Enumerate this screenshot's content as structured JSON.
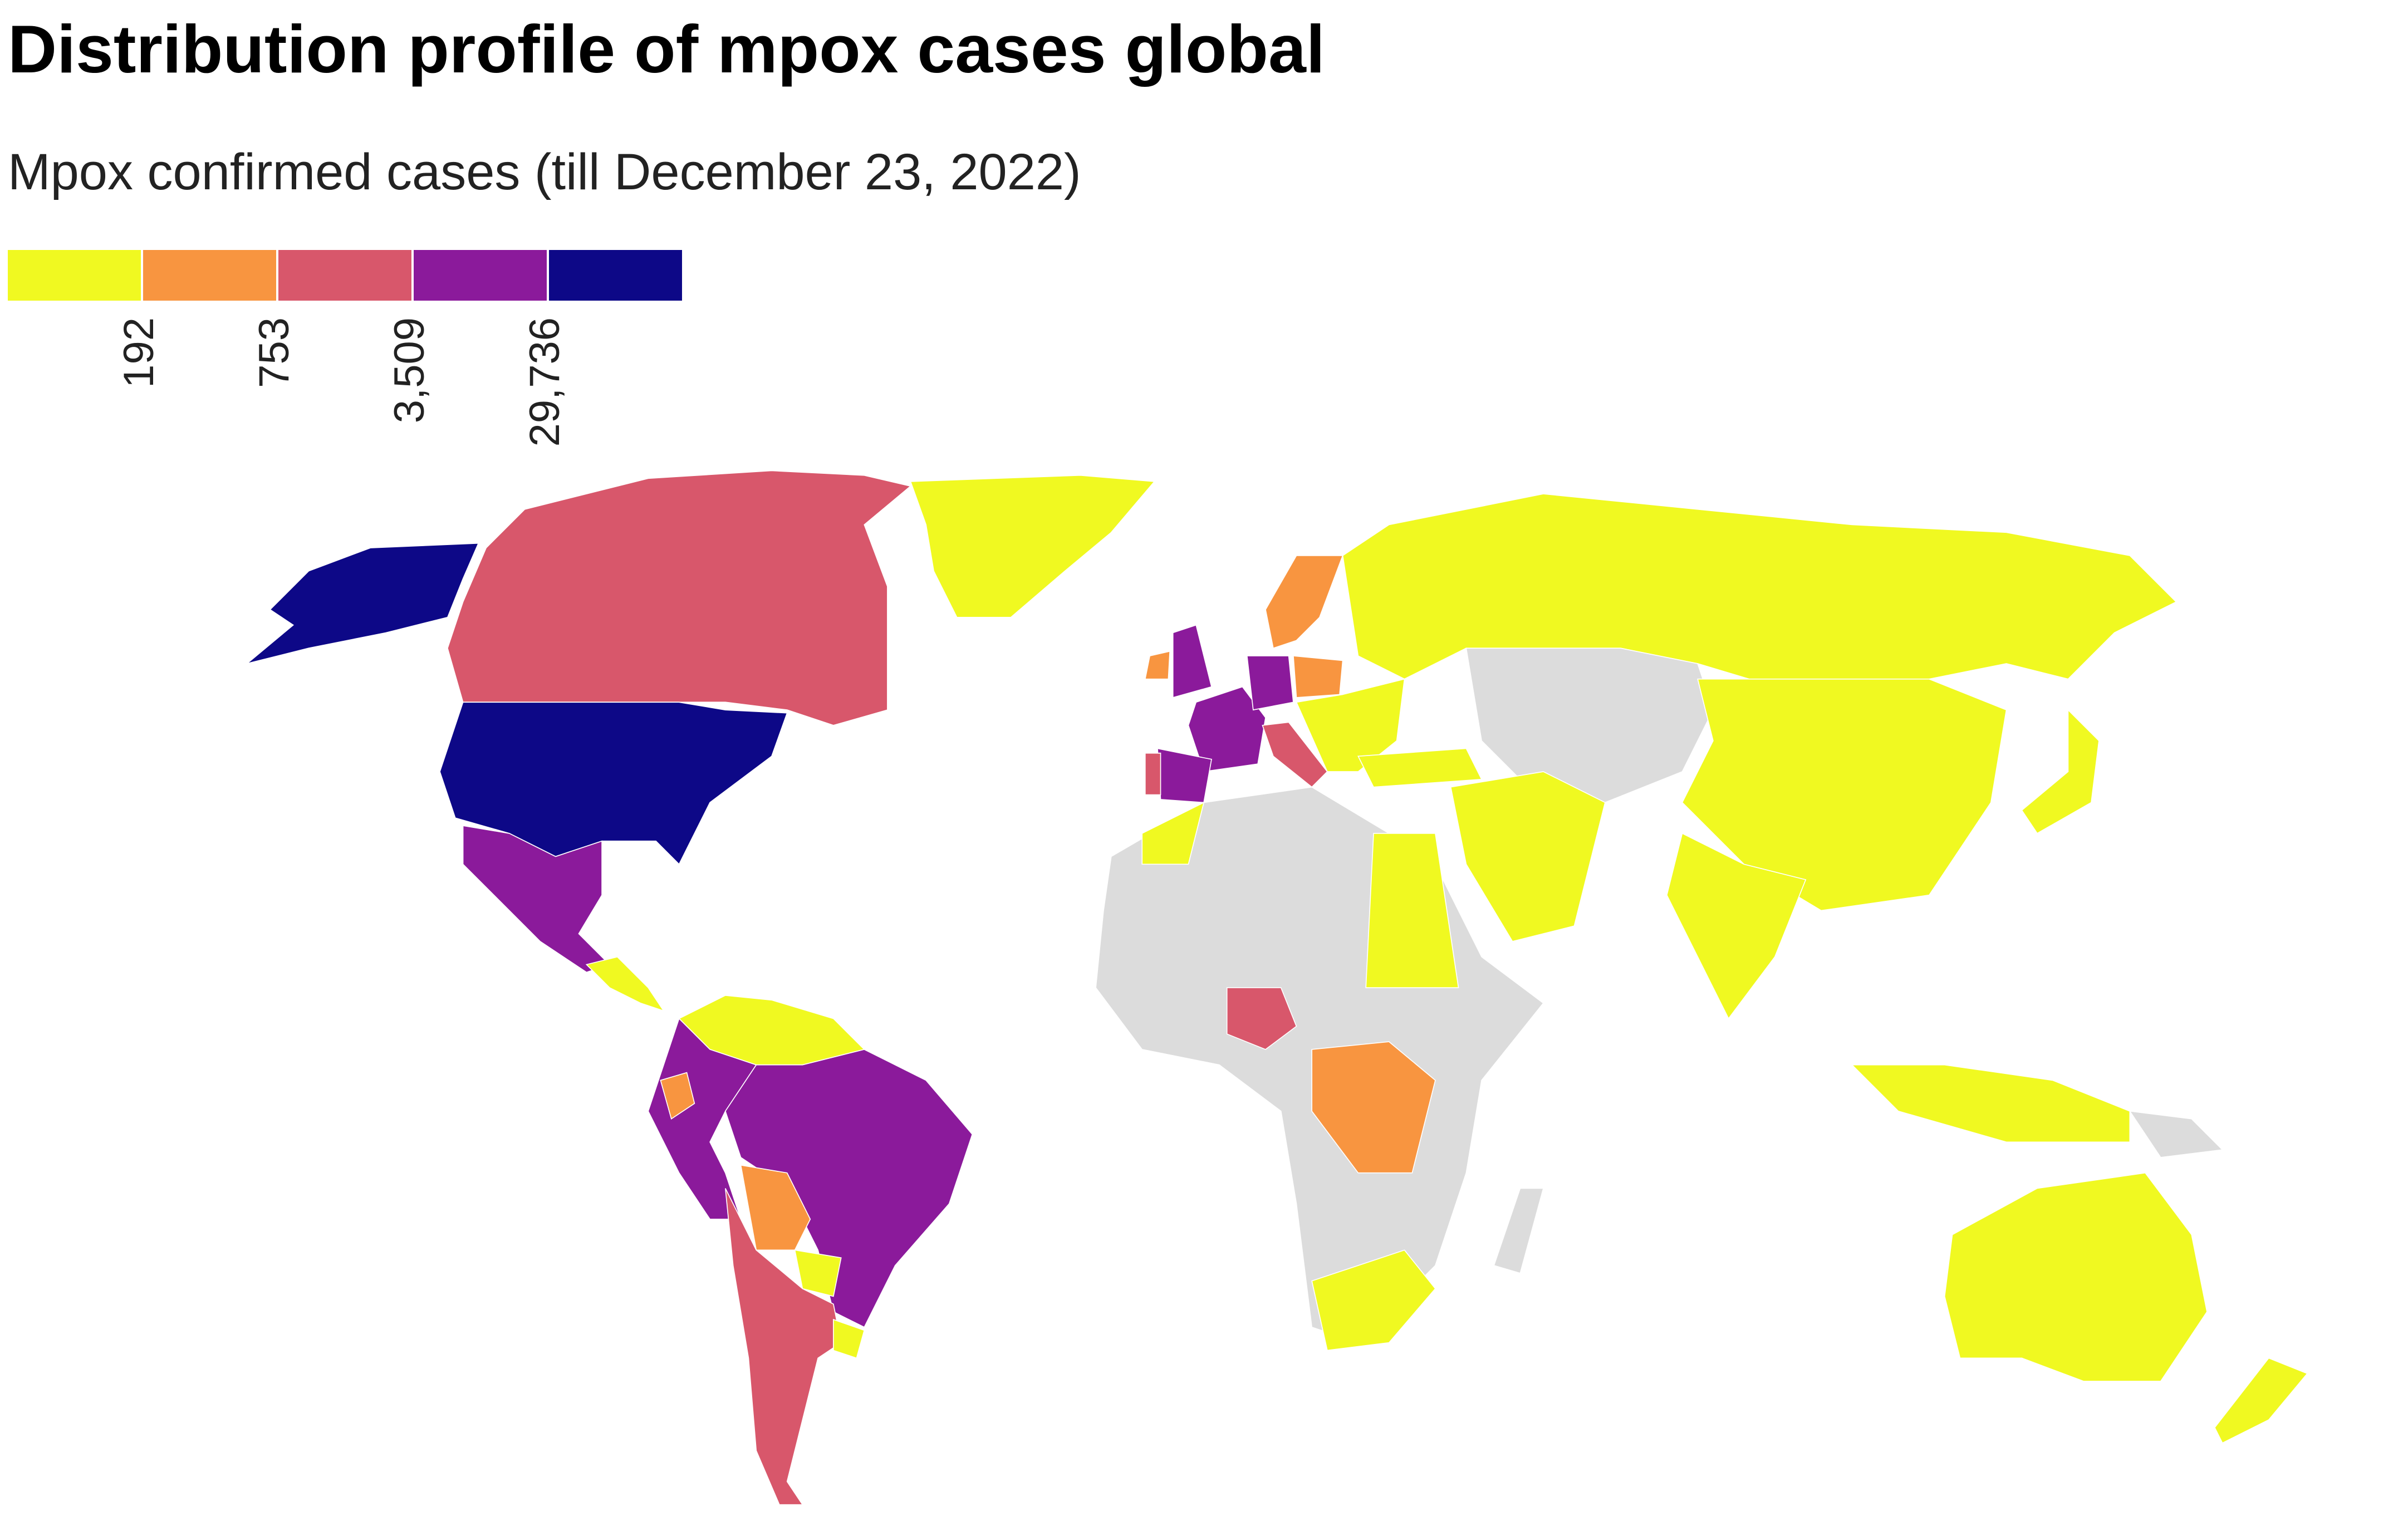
{
  "title": "Distribution profile of mpox cases global",
  "subtitle": "Mpox confirmed cases (till December 23, 2022)",
  "legend": {
    "colors": [
      "#f0f921",
      "#f89540",
      "#d8576b",
      "#8b1a9b",
      "#0d0887"
    ],
    "breaks": [
      192,
      753,
      {
        "value": 3509,
        "label": "3,509"
      },
      {
        "value": 29736,
        "label": "29,736"
      }
    ]
  }
}
